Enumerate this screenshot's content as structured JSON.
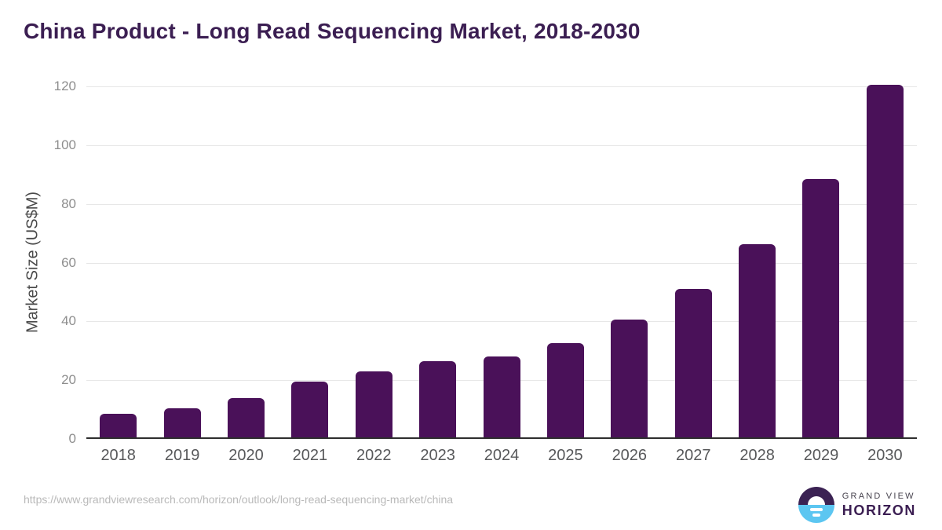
{
  "title": "China Product - Long Read Sequencing Market, 2018-2030",
  "chart_data": {
    "type": "bar",
    "title": "China Product - Long Read Sequencing Market, 2018-2030",
    "categories": [
      "2018",
      "2019",
      "2020",
      "2021",
      "2022",
      "2023",
      "2024",
      "2025",
      "2026",
      "2027",
      "2028",
      "2029",
      "2030"
    ],
    "values": [
      8,
      9.8,
      13.5,
      19,
      22.5,
      26,
      27.5,
      32,
      40,
      50.5,
      65.8,
      88,
      120
    ],
    "xlabel": "",
    "ylabel": "Market Size (US$M)",
    "ylim": [
      0,
      120
    ],
    "yticks": [
      0,
      20,
      40,
      60,
      80,
      100,
      120
    ],
    "grid": "horizontal",
    "legend": "none",
    "bar_color": "#4a1159"
  },
  "colors": {
    "title": "#3b1e52",
    "bar": "#4a1159",
    "gridline": "#e7e7e7",
    "axis_line": "#2e2e2e",
    "y_tick_label": "#8e8e8e",
    "x_tick_label": "#57585a",
    "source_text": "#b9b9b9",
    "logo_blue": "#5cc6f1",
    "logo_purple": "#3b2253"
  },
  "footer": {
    "source_url": "https://www.grandviewresearch.com/horizon/outlook/long-read-sequencing-market/china",
    "logo": {
      "top_text": "GRAND VIEW",
      "bottom_text": "HORIZON"
    }
  }
}
